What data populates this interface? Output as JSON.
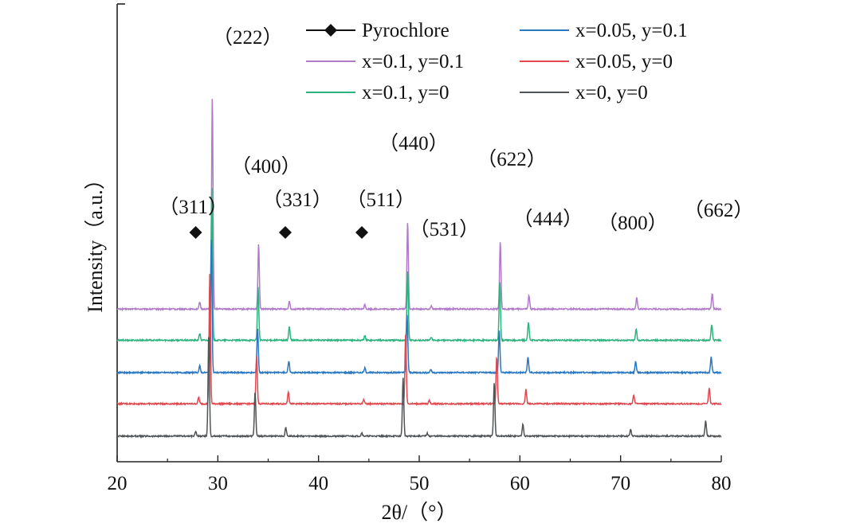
{
  "chart_data": {
    "type": "line",
    "xlabel": "2θ/（°）",
    "ylabel": "Intensity（a.u.）",
    "xlim": [
      20,
      80
    ],
    "xticks": [
      "20",
      "30",
      "40",
      "50",
      "60",
      "70",
      "80"
    ],
    "y_ticks_shown": false,
    "grid": false,
    "legend_position": "top",
    "legend": [
      {
        "label": "Pyrochlore",
        "marker": "diamond",
        "color": "#111111"
      },
      {
        "label": "x=0.1, y=0.1",
        "color": "#b07ac8"
      },
      {
        "label": "x=0.1, y=0",
        "color": "#2db37d"
      },
      {
        "label": "x=0.05, y=0.1",
        "color": "#2a78c2"
      },
      {
        "label": "x=0.05, y=0",
        "color": "#e0474f"
      },
      {
        "label": "x=0, y=0",
        "color": "#505457"
      }
    ],
    "peak_labels": [
      {
        "text": "（311）",
        "x": 28.2
      },
      {
        "text": "（222）",
        "x": 29.4
      },
      {
        "text": "（400）",
        "x": 34.0
      },
      {
        "text": "（331）",
        "x": 37.1
      },
      {
        "text": "（511）",
        "x": 44.6
      },
      {
        "text": "（440）",
        "x": 48.8
      },
      {
        "text": "（531）",
        "x": 51.3
      },
      {
        "text": "（622）",
        "x": 58.0
      },
      {
        "text": "（444）",
        "x": 60.8
      },
      {
        "text": "（800）",
        "x": 71.6
      },
      {
        "text": "（662）",
        "x": 79.1
      }
    ],
    "pyrochlore_markers_x": [
      27.8,
      36.7,
      44.3
    ],
    "series": [
      {
        "name": "x=0.1, y=0.1",
        "color": "#b07ac8",
        "offset": 6.6,
        "peaks": [
          [
            28.2,
            0.3
          ],
          [
            29.45,
            9.5
          ],
          [
            34.05,
            2.9
          ],
          [
            37.1,
            0.35
          ],
          [
            44.6,
            0.2
          ],
          [
            48.85,
            3.9
          ],
          [
            51.2,
            0.15
          ],
          [
            58.05,
            3.0
          ],
          [
            60.9,
            0.6
          ],
          [
            71.6,
            0.5
          ],
          [
            79.1,
            0.7
          ]
        ]
      },
      {
        "name": "x=0.1, y=0",
        "color": "#2db37d",
        "offset": 5.2,
        "peaks": [
          [
            28.2,
            0.3
          ],
          [
            29.4,
            6.8
          ],
          [
            34.0,
            2.4
          ],
          [
            37.1,
            0.6
          ],
          [
            44.6,
            0.2
          ],
          [
            48.85,
            3.1
          ],
          [
            51.2,
            0.15
          ],
          [
            58.0,
            2.6
          ],
          [
            60.85,
            0.8
          ],
          [
            71.55,
            0.5
          ],
          [
            79.05,
            0.7
          ]
        ]
      },
      {
        "name": "x=0.05, y=0.1",
        "color": "#2a78c2",
        "offset": 3.75,
        "peaks": [
          [
            28.2,
            0.3
          ],
          [
            29.35,
            6.0
          ],
          [
            33.95,
            2.0
          ],
          [
            37.05,
            0.5
          ],
          [
            44.6,
            0.2
          ],
          [
            48.8,
            2.6
          ],
          [
            51.15,
            0.15
          ],
          [
            57.95,
            1.9
          ],
          [
            60.8,
            0.7
          ],
          [
            71.5,
            0.5
          ],
          [
            79.0,
            0.7
          ]
        ]
      },
      {
        "name": "x=0.05, y=0",
        "color": "#e0474f",
        "offset": 2.35,
        "peaks": [
          [
            28.1,
            0.3
          ],
          [
            29.2,
            5.8
          ],
          [
            33.85,
            2.2
          ],
          [
            37.0,
            0.55
          ],
          [
            44.5,
            0.2
          ],
          [
            48.65,
            3.1
          ],
          [
            51.0,
            0.15
          ],
          [
            57.7,
            2.1
          ],
          [
            60.6,
            0.65
          ],
          [
            71.3,
            0.4
          ],
          [
            78.8,
            0.7
          ]
        ]
      },
      {
        "name": "x=0, y=0",
        "color": "#505457",
        "offset": 0.9,
        "peaks": [
          [
            27.8,
            0.2
          ],
          [
            29.1,
            4.6
          ],
          [
            33.7,
            2.0
          ],
          [
            36.75,
            0.4
          ],
          [
            44.3,
            0.15
          ],
          [
            48.4,
            2.6
          ],
          [
            50.8,
            0.12
          ],
          [
            57.45,
            2.4
          ],
          [
            60.3,
            0.55
          ],
          [
            71.0,
            0.3
          ],
          [
            78.45,
            0.7
          ]
        ]
      }
    ]
  }
}
